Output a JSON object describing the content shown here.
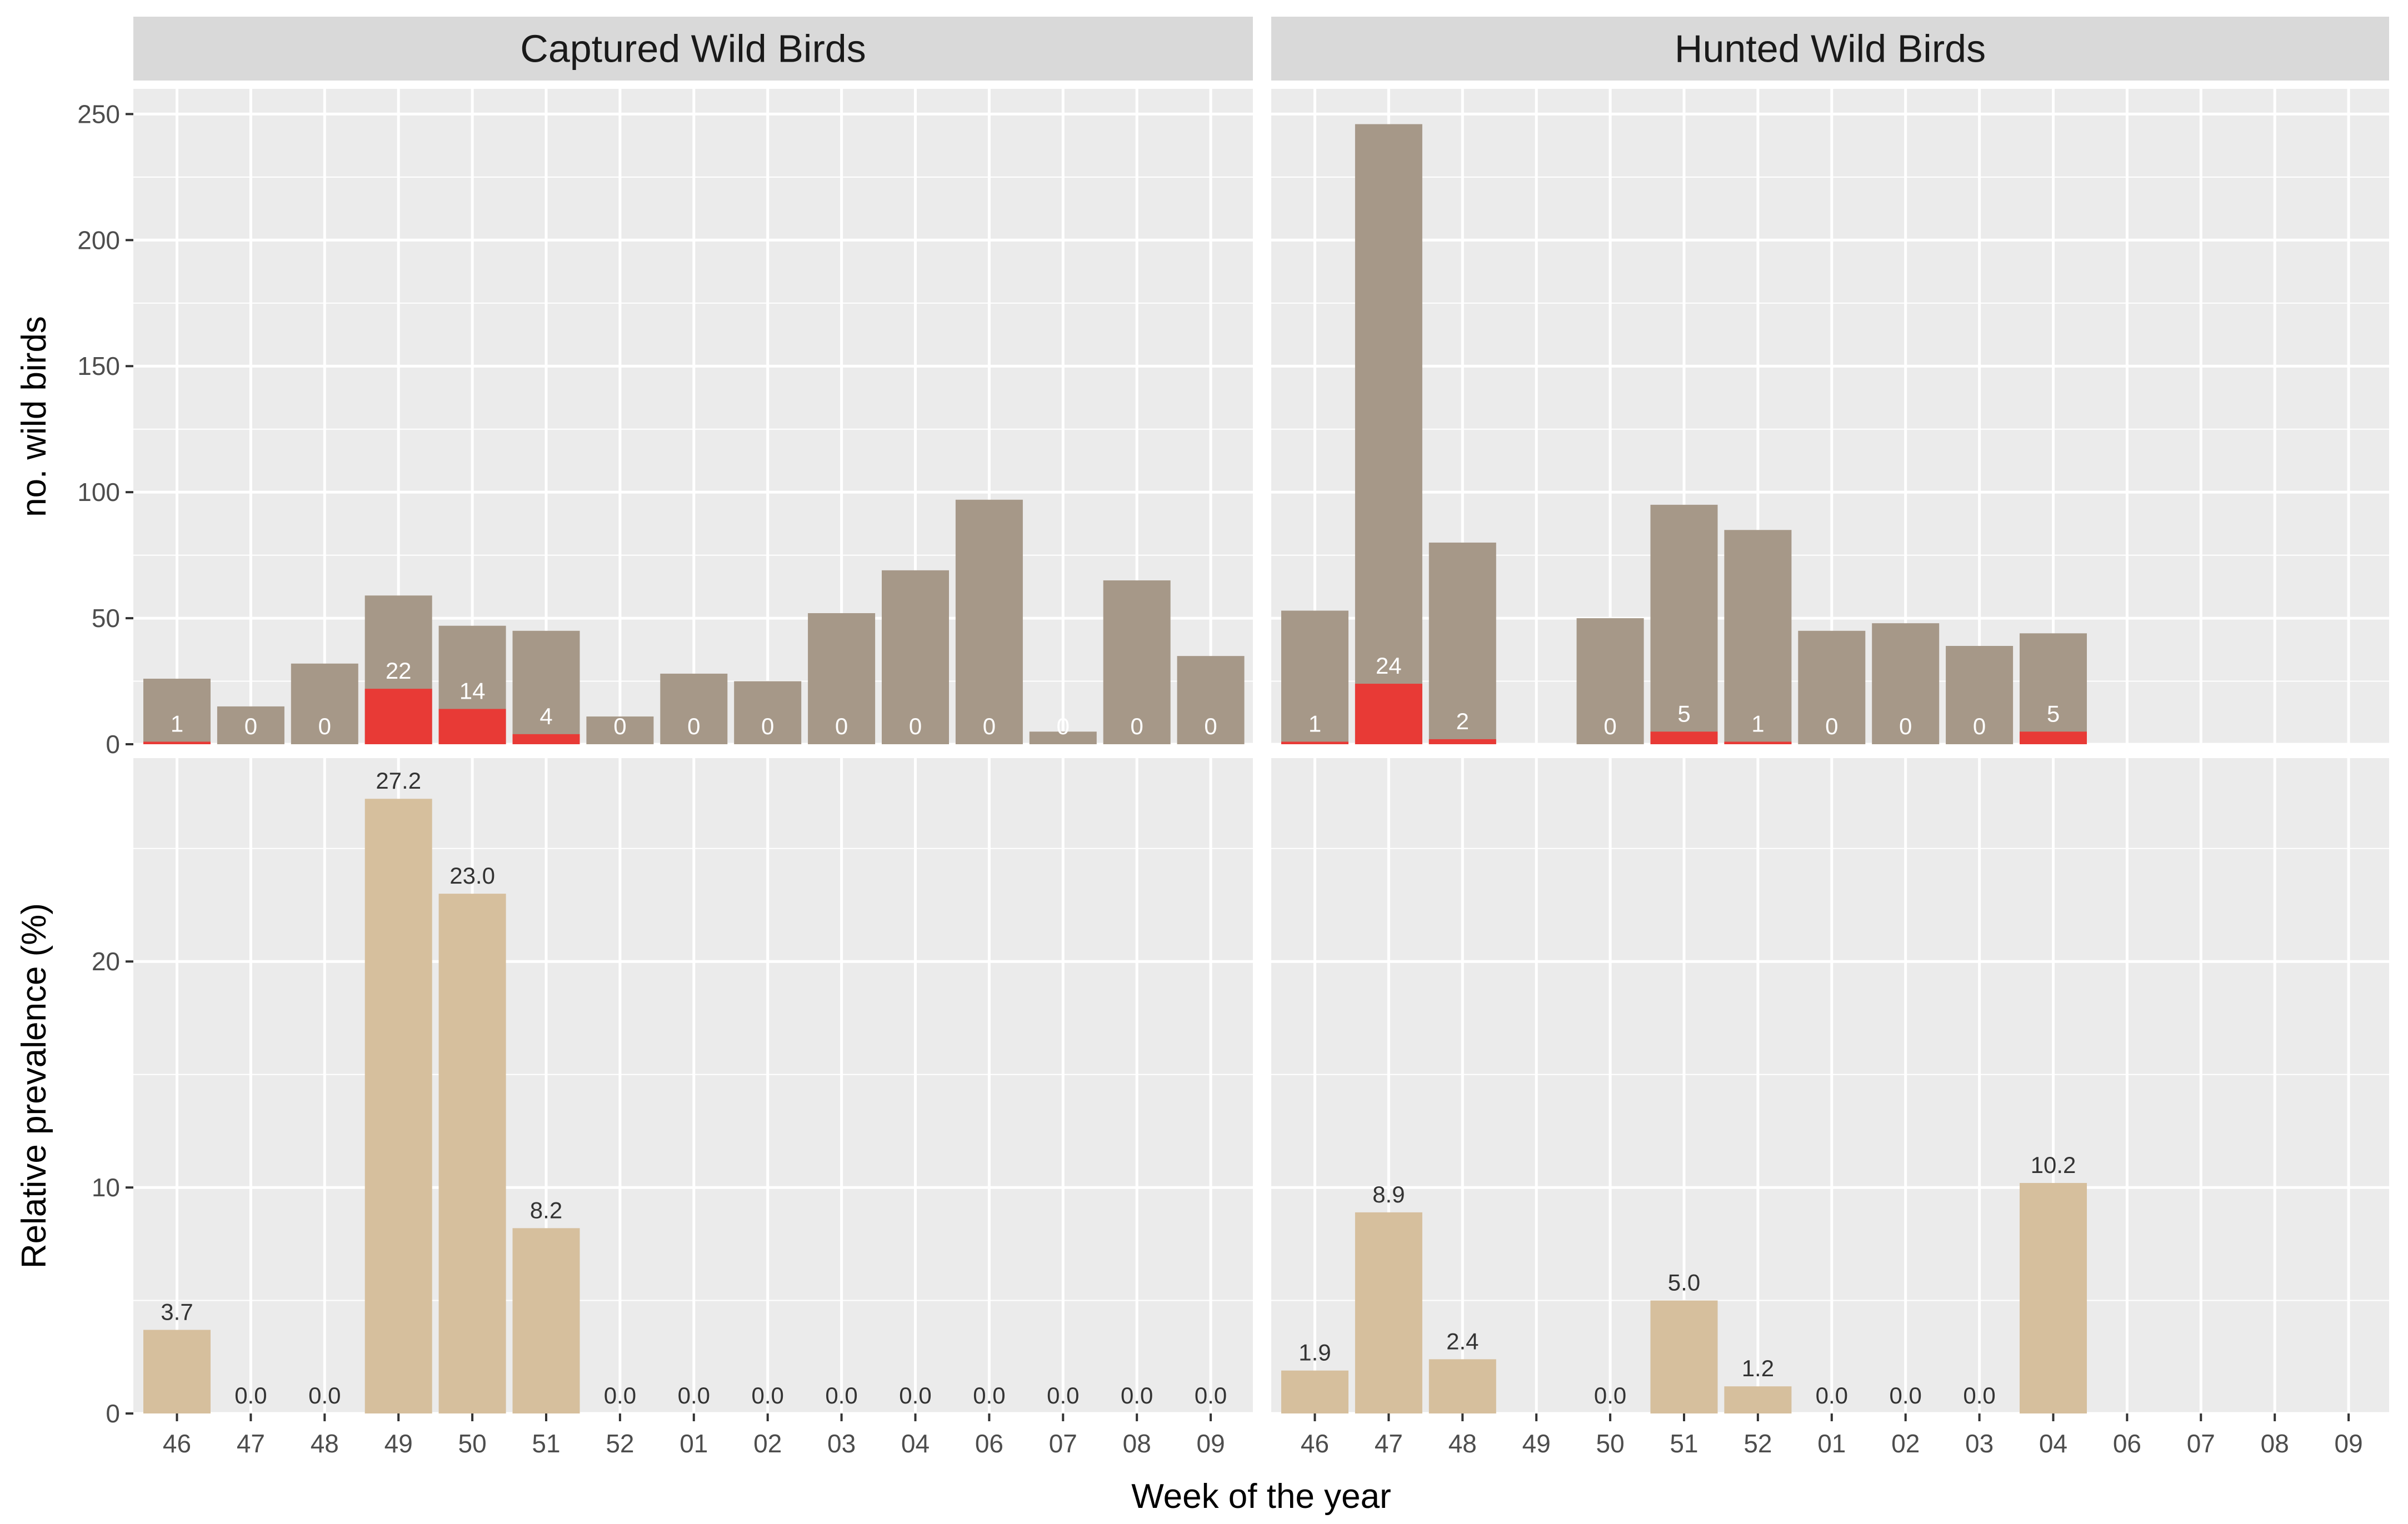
{
  "chart_data": {
    "type": "bar",
    "x_label": "Week of the year",
    "x_categories": [
      "46",
      "47",
      "48",
      "49",
      "50",
      "51",
      "52",
      "01",
      "02",
      "03",
      "04",
      "06",
      "07",
      "08",
      "09"
    ],
    "panels_columns": [
      "Captured Wild Birds",
      "Hunted Wild Birds"
    ],
    "colors": {
      "panel_bg": "#ebebeb",
      "grid": "#ffffff",
      "strip_bg": "#d9d9d9",
      "total_bar": "#a69888",
      "positive_bar": "#e83a36",
      "prevalence_bar": "#d6bf9d"
    },
    "top_row": {
      "ylabel": "no. wild birds",
      "ylim": [
        0,
        260
      ],
      "yticks": [
        0,
        50,
        100,
        150,
        200,
        250
      ],
      "ytick_labels": [
        "0",
        "50",
        "100",
        "150",
        "200",
        "250"
      ],
      "panels": [
        {
          "name": "Captured Wild Birds",
          "total": [
            26,
            15,
            32,
            59,
            47,
            45,
            11,
            28,
            25,
            52,
            69,
            97,
            5,
            65,
            35
          ],
          "positive": [
            1,
            0,
            0,
            22,
            14,
            4,
            0,
            0,
            0,
            0,
            0,
            0,
            0,
            0,
            0
          ],
          "labels": [
            "1",
            "0",
            "0",
            "22",
            "14",
            "4",
            "0",
            "0",
            "0",
            "0",
            "0",
            "0",
            "0",
            "0",
            "0"
          ]
        },
        {
          "name": "Hunted Wild Birds",
          "total": [
            53,
            246,
            80,
            null,
            50,
            95,
            85,
            45,
            48,
            39,
            44,
            null,
            null,
            null,
            null
          ],
          "positive": [
            1,
            24,
            2,
            null,
            0,
            5,
            1,
            0,
            0,
            0,
            5,
            null,
            null,
            null,
            null
          ],
          "labels": [
            "1",
            "24",
            "2",
            "",
            "0",
            "5",
            "1",
            "0",
            "0",
            "0",
            "5",
            "",
            "",
            "",
            ""
          ]
        }
      ]
    },
    "bottom_row": {
      "ylabel": "Relative prevalence (%)",
      "ylim": [
        0,
        29
      ],
      "yticks": [
        0,
        10,
        20
      ],
      "ytick_labels": [
        "0",
        "10",
        "20"
      ],
      "panels": [
        {
          "name": "Captured Wild Birds",
          "values": [
            3.7,
            0,
            0,
            27.2,
            23.0,
            8.2,
            0,
            0,
            0,
            0,
            0,
            0,
            0,
            0,
            0
          ],
          "labels": [
            "3.7",
            "0.0",
            "0.0",
            "27.2",
            "23.0",
            "8.2",
            "0.0",
            "0.0",
            "0.0",
            "0.0",
            "0.0",
            "0.0",
            "0.0",
            "0.0",
            "0.0"
          ]
        },
        {
          "name": "Hunted Wild Birds",
          "values": [
            1.9,
            8.9,
            2.4,
            null,
            0,
            5.0,
            1.2,
            0,
            0,
            0,
            10.2,
            null,
            null,
            null,
            null
          ],
          "labels": [
            "1.9",
            "8.9",
            "2.4",
            "",
            "0.0",
            "5.0",
            "1.2",
            "0.0",
            "0.0",
            "0.0",
            "10.2",
            "",
            "",
            "",
            ""
          ]
        }
      ]
    }
  }
}
